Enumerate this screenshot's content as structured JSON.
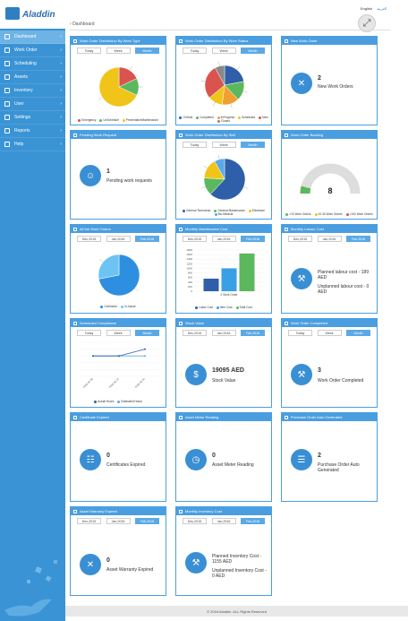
{
  "app": {
    "name": "Aladdin"
  },
  "header": {
    "lang_en": "English",
    "lang_ar": "العربية",
    "user_arrow": "▾"
  },
  "breadcrumb": "Dashboard",
  "nav": [
    {
      "label": "Dashboard",
      "icon": "dashboard-icon",
      "active": true
    },
    {
      "label": "Work Order",
      "icon": "wrench-icon"
    },
    {
      "label": "Scheduling",
      "icon": "calendar-icon"
    },
    {
      "label": "Assets",
      "icon": "pin-icon"
    },
    {
      "label": "Inventory",
      "icon": "truck-icon"
    },
    {
      "label": "User",
      "icon": "user-icon"
    },
    {
      "label": "Settings",
      "icon": "gear-icon"
    },
    {
      "label": "Reports",
      "icon": "chart-icon"
    },
    {
      "label": "Help",
      "icon": "help-icon"
    }
  ],
  "tabs_period": [
    "Today",
    "Week",
    "Month"
  ],
  "tabs_month": [
    "Dec,2015",
    "Jan,2016",
    "Feb,2016"
  ],
  "widgets": {
    "wo_type": {
      "title": "Work Order Distribution By Work Type",
      "legend": [
        "Emergency",
        "UnSchedule",
        "PreventativeMaintenance"
      ],
      "colors": [
        "#d9534f",
        "#5cb85c",
        "#f0c419"
      ]
    },
    "wo_status": {
      "title": "Work Order Distribution By Work Status",
      "legend": [
        "OnHold",
        "Completed",
        "InProgress",
        "Scheduled",
        "New",
        "Closed"
      ],
      "colors": [
        "#2e5fa8",
        "#5cb85c",
        "#f0a030",
        "#f0c419",
        "#d9534f",
        "#888888"
      ]
    },
    "new_wo": {
      "title": "New Work Order",
      "count": "2",
      "label": "New Work Orders"
    },
    "pending_wr": {
      "title": "Pending Work Request",
      "count": "1",
      "label": "Pending work requests"
    },
    "wo_skill": {
      "title": "Work Order Distribution By Skill",
      "legend": [
        "General Technician",
        "General Maintenance",
        "Electrican",
        "Bio Medical"
      ],
      "colors": [
        "#2e5fa8",
        "#5cb85c",
        "#f0c419",
        "#5aa9e6"
      ]
    },
    "backlog": {
      "title": "Work Order Backlog",
      "value": "8",
      "legend": [
        ">10 Work Orders",
        "10-30 Work Orders",
        ">100 Work Orders"
      ],
      "colors": [
        "#5cb85c",
        "#f0c419",
        "#d9534f"
      ]
    },
    "all_wo": {
      "title": "All the Work Orders",
      "legend": [
        "Contractor",
        "In-house"
      ],
      "colors": [
        "#2e8fe0",
        "#6ec3f5"
      ]
    },
    "maint_cost": {
      "title": "Monthly Maintenance Cost",
      "legend": [
        "Labor Cost",
        "Item Cost",
        "Total Cost"
      ],
      "colors": [
        "#2e5fa8",
        "#3aa0e6",
        "#5cb85c"
      ],
      "axis_label": "2 Work Order"
    },
    "labour_cost": {
      "title": "Monthly Labour Cost",
      "planned": "Planned labour cost - 189 AED",
      "unplanned": "Unplanned labour cost - 0 AED"
    },
    "sched_compliance": {
      "title": "Scheduled Compliance",
      "legend": [
        "Actual Hours",
        "Estimated Hours"
      ],
      "colors": [
        "#2e5fa8",
        "#5aa9e6"
      ]
    },
    "stock_value": {
      "title": "Stock Value",
      "count": "19095 AED",
      "label": "Stock Value"
    },
    "wo_completed": {
      "title": "Work Order Completed",
      "count": "3",
      "label": "Work Order Completed"
    },
    "cert_expired": {
      "title": "Certificate Expired",
      "count": "0",
      "label": "Certificates Expired"
    },
    "meter_reading": {
      "title": "Asset Meter Reading",
      "count": "0",
      "label": "Asset Meter Reading"
    },
    "po_auto": {
      "title": "Purchase Order Auto Generated",
      "count": "2",
      "label": "Purchase Order Auto Generated"
    },
    "warranty": {
      "title": "Asset Warranty Expired",
      "count": "0",
      "label": "Asset Warranty Expired"
    },
    "inv_cost": {
      "title": "Monthly Inventory Cost",
      "planned": "Planned Inventory Cost - 1155 AED",
      "unplanned": "Unplanned Inventory Cost - 0 AED"
    }
  },
  "chart_data": [
    {
      "type": "pie",
      "categories": [
        "Emergency",
        "UnSchedule",
        "PreventativeMaintenance"
      ],
      "values": [
        18,
        14,
        68
      ]
    },
    {
      "type": "pie",
      "categories": [
        "OnHold",
        "Completed",
        "InProgress",
        "Scheduled",
        "New",
        "Closed"
      ],
      "values": [
        22,
        16,
        14,
        12,
        28,
        8
      ]
    },
    {
      "type": "pie",
      "categories": [
        "General Technician",
        "General Maintenance",
        "Electrican",
        "Bio Medical"
      ],
      "values": [
        62,
        14,
        16,
        8
      ]
    },
    {
      "type": "gauge",
      "value": 8
    },
    {
      "type": "pie",
      "categories": [
        "Contractor",
        "In-house"
      ],
      "values": [
        72,
        28
      ]
    },
    {
      "type": "bar",
      "categories": [
        "2 Work Order"
      ],
      "series": [
        {
          "name": "Labor Cost",
          "values": [
            550
          ]
        },
        {
          "name": "Item Cost",
          "values": [
            1000
          ]
        },
        {
          "name": "Total Cost",
          "values": [
            1650
          ]
        }
      ],
      "y_ticks": [
        "1800",
        "1600",
        "1400",
        "1200",
        "1000",
        "800",
        "600",
        "400",
        "200",
        "0"
      ],
      "ylim": [
        0,
        1800
      ]
    },
    {
      "type": "line",
      "x": [
        "2016-02-06",
        "2016-02-13",
        "2016-02-20"
      ],
      "series": [
        {
          "name": "Actual Hours",
          "values": [
            3,
            3,
            4
          ]
        },
        {
          "name": "Estimated Hours",
          "values": [
            3,
            3,
            3
          ]
        }
      ],
      "ylim": [
        0,
        5
      ]
    }
  ],
  "footer": "© 2016 Aladdin. ALL Rights Reserved"
}
